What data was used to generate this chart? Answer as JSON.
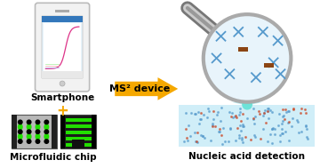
{
  "bg_color": "#ffffff",
  "smartphone_label": "Smartphone",
  "chip_label": "Microfluidic chip",
  "arrow_label": "MS² device",
  "detection_label": "Nucleic acid detection",
  "plus_symbol": "+",
  "arrow_color": "#f5a800",
  "phone_body_color": "#f2f2f2",
  "phone_screen_bg": "#e8f4fb",
  "phone_header_color": "#3377bb",
  "phone_border_color": "#bbbbbb",
  "chip_bg1": "#b8b8b8",
  "chip_bg2": "#1a1a1a",
  "chip_green": "#22dd00",
  "chip_dark": "#222222",
  "mag_lens_fill": "#e8f4fb",
  "mag_lens_edge": "#aaaaaa",
  "mag_handle_dark": "#777777",
  "mag_handle_light": "#cccccc",
  "beam_color": "#88dde8",
  "det_bg_color": "#d0eef8",
  "dot_blue": "#5599cc",
  "dot_red": "#cc4422",
  "x_blue": "#5599cc",
  "x_brown": "#8B4513",
  "label_fontsize": 7.5,
  "arrow_fontsize": 8,
  "plus_fontsize": 12
}
